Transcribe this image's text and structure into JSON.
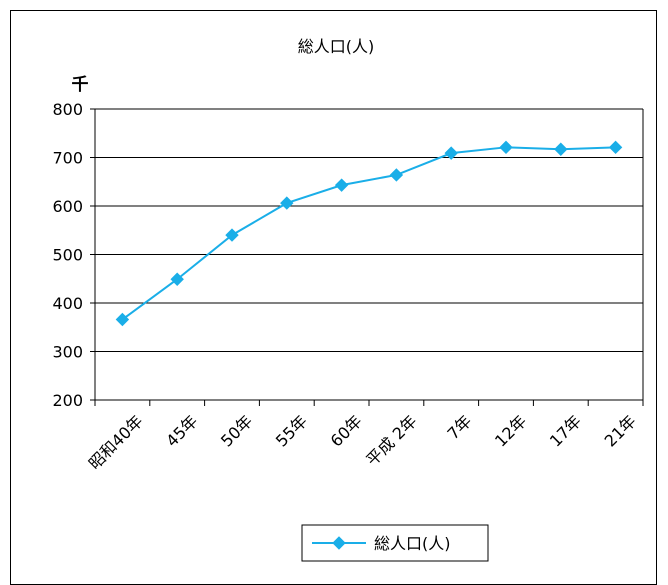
{
  "chart_data": {
    "type": "line",
    "title": "総人口(人)",
    "unit_label": "千",
    "categories": [
      "昭和40年",
      "45年",
      "50年",
      "55年",
      "60年",
      "平成 2年",
      "7年",
      "12年",
      "17年",
      "21年"
    ],
    "series": [
      {
        "name": "総人口(人)",
        "color": "#1aaee8",
        "marker": "diamond",
        "values": [
          366,
          449,
          540,
          606,
          643,
          664,
          709,
          721,
          717,
          721
        ]
      }
    ],
    "ylim": [
      200,
      800
    ],
    "yticks": [
      200,
      300,
      400,
      500,
      600,
      700,
      800
    ],
    "grid": true,
    "legend_position": "bottom-center",
    "xlabel": "",
    "ylabel": ""
  }
}
